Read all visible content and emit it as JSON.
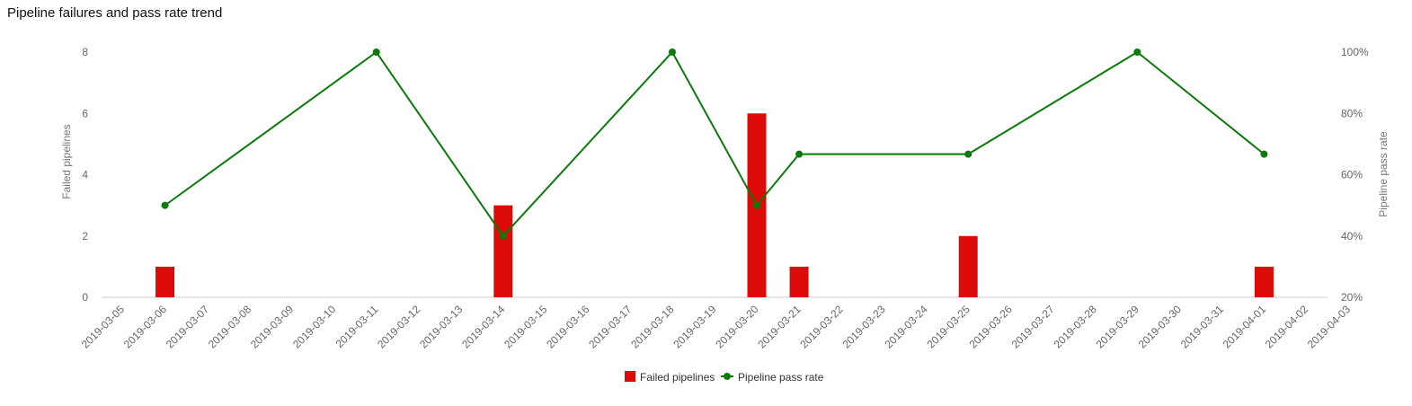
{
  "chart_data": {
    "type": "bar",
    "title": "Pipeline failures and pass rate trend",
    "categories": [
      "2019-03-05",
      "2019-03-06",
      "2019-03-07",
      "2019-03-08",
      "2019-03-09",
      "2019-03-10",
      "2019-03-11",
      "2019-03-12",
      "2019-03-13",
      "2019-03-14",
      "2019-03-15",
      "2019-03-16",
      "2019-03-17",
      "2019-03-18",
      "2019-03-19",
      "2019-03-20",
      "2019-03-21",
      "2019-03-22",
      "2019-03-23",
      "2019-03-24",
      "2019-03-25",
      "2019-03-26",
      "2019-03-27",
      "2019-03-28",
      "2019-03-29",
      "2019-03-30",
      "2019-03-31",
      "2019-04-01",
      "2019-04-02",
      "2019-04-03"
    ],
    "series": [
      {
        "name": "Failed pipelines",
        "type": "bar",
        "axis": "left",
        "color": "#dd0a0a",
        "values": [
          null,
          1,
          null,
          null,
          null,
          null,
          null,
          null,
          null,
          3,
          null,
          null,
          null,
          null,
          null,
          6,
          1,
          null,
          null,
          null,
          2,
          null,
          null,
          null,
          null,
          null,
          null,
          1,
          null,
          null
        ]
      },
      {
        "name": "Pipeline pass rate",
        "type": "line",
        "axis": "right",
        "color": "#0b7a0b",
        "values": [
          null,
          50,
          null,
          null,
          null,
          null,
          100,
          null,
          null,
          40,
          null,
          null,
          null,
          100,
          null,
          50,
          66.7,
          null,
          null,
          null,
          66.7,
          null,
          null,
          null,
          100,
          null,
          null,
          66.7,
          null,
          null
        ]
      }
    ],
    "ylabel": "Failed pipelines",
    "y2label": "Pipeline pass rate",
    "ylim": [
      0,
      8
    ],
    "y2lim": [
      20,
      100
    ],
    "yticks": [
      "0",
      "2",
      "4",
      "6",
      "8"
    ],
    "y2ticks": [
      "20%",
      "40%",
      "60%",
      "80%",
      "100%"
    ],
    "legend": "bottom-center",
    "grid": false
  }
}
